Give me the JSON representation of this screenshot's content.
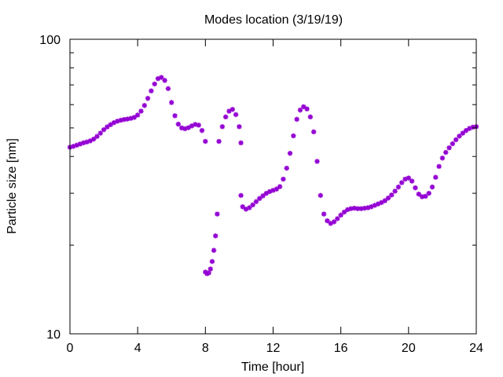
{
  "chart_data": {
    "type": "scatter",
    "title": "Modes location (3/19/19)",
    "xlabel": "Time [hour]",
    "ylabel": "Particle size [nm]",
    "xlim": [
      0,
      24
    ],
    "ylim": [
      10,
      100
    ],
    "yscale": "log",
    "grid": false,
    "legend": "none",
    "xticks": [
      "0",
      "4",
      "8",
      "12",
      "16",
      "20",
      "24"
    ],
    "yticks": [
      "10",
      "100"
    ],
    "marker": "asterisk",
    "color": "#9400d3",
    "series": [
      {
        "points": [
          [
            0.0,
            43.0
          ],
          [
            0.2,
            43.3
          ],
          [
            0.4,
            43.7
          ],
          [
            0.6,
            44.1
          ],
          [
            0.8,
            44.5
          ],
          [
            1.0,
            44.8
          ],
          [
            1.2,
            45.2
          ],
          [
            1.4,
            45.8
          ],
          [
            1.6,
            46.8
          ],
          [
            1.8,
            48.0
          ],
          [
            2.0,
            49.3
          ],
          [
            2.2,
            50.4
          ],
          [
            2.4,
            51.3
          ],
          [
            2.6,
            52.1
          ],
          [
            2.8,
            52.7
          ],
          [
            3.0,
            53.1
          ],
          [
            3.2,
            53.4
          ],
          [
            3.4,
            53.6
          ],
          [
            3.6,
            53.9
          ],
          [
            3.8,
            54.3
          ],
          [
            4.0,
            55.3
          ],
          [
            4.2,
            57.0
          ],
          [
            4.4,
            59.6
          ],
          [
            4.6,
            63.0
          ],
          [
            4.8,
            66.8
          ],
          [
            5.0,
            70.5
          ],
          [
            5.2,
            73.5
          ],
          [
            5.4,
            74.2
          ],
          [
            5.6,
            72.5
          ],
          [
            5.8,
            68.0
          ],
          [
            6.0,
            61.0
          ],
          [
            6.2,
            55.0
          ],
          [
            6.4,
            51.5
          ],
          [
            6.6,
            50.0
          ],
          [
            6.8,
            49.7
          ],
          [
            7.0,
            50.1
          ],
          [
            7.2,
            50.8
          ],
          [
            7.4,
            51.4
          ],
          [
            7.6,
            51.1
          ],
          [
            7.8,
            49.0
          ],
          [
            8.0,
            45.0
          ],
          [
            8.0,
            16.2
          ],
          [
            8.1,
            16.0
          ],
          [
            8.2,
            16.1
          ],
          [
            8.3,
            16.6
          ],
          [
            8.4,
            17.6
          ],
          [
            8.5,
            19.2
          ],
          [
            8.6,
            21.5
          ],
          [
            8.7,
            25.5
          ],
          [
            8.8,
            45.0
          ],
          [
            9.0,
            50.5
          ],
          [
            9.2,
            54.5
          ],
          [
            9.4,
            57.0
          ],
          [
            9.6,
            57.8
          ],
          [
            9.8,
            55.5
          ],
          [
            10.0,
            50.5
          ],
          [
            10.1,
            44.5
          ],
          [
            10.1,
            29.5
          ],
          [
            10.2,
            27.0
          ],
          [
            10.4,
            26.5
          ],
          [
            10.6,
            26.8
          ],
          [
            10.8,
            27.4
          ],
          [
            11.0,
            28.1
          ],
          [
            11.2,
            28.8
          ],
          [
            11.4,
            29.4
          ],
          [
            11.6,
            30.0
          ],
          [
            11.8,
            30.4
          ],
          [
            12.0,
            30.7
          ],
          [
            12.2,
            31.0
          ],
          [
            12.4,
            31.6
          ],
          [
            12.6,
            33.5
          ],
          [
            12.8,
            36.5
          ],
          [
            13.0,
            41.0
          ],
          [
            13.2,
            47.0
          ],
          [
            13.4,
            53.5
          ],
          [
            13.6,
            57.5
          ],
          [
            13.8,
            59.0
          ],
          [
            14.0,
            58.0
          ],
          [
            14.2,
            54.5
          ],
          [
            14.4,
            48.5
          ],
          [
            14.6,
            38.5
          ],
          [
            14.8,
            29.5
          ],
          [
            15.0,
            25.5
          ],
          [
            15.2,
            24.2
          ],
          [
            15.4,
            23.7
          ],
          [
            15.6,
            24.0
          ],
          [
            15.8,
            24.6
          ],
          [
            16.0,
            25.3
          ],
          [
            16.2,
            25.9
          ],
          [
            16.4,
            26.4
          ],
          [
            16.6,
            26.6
          ],
          [
            16.8,
            26.7
          ],
          [
            17.0,
            26.6
          ],
          [
            17.2,
            26.6
          ],
          [
            17.4,
            26.7
          ],
          [
            17.6,
            26.8
          ],
          [
            17.8,
            27.0
          ],
          [
            18.0,
            27.3
          ],
          [
            18.2,
            27.6
          ],
          [
            18.4,
            27.9
          ],
          [
            18.6,
            28.3
          ],
          [
            18.8,
            28.9
          ],
          [
            19.0,
            29.6
          ],
          [
            19.2,
            30.5
          ],
          [
            19.4,
            31.5
          ],
          [
            19.6,
            32.6
          ],
          [
            19.8,
            33.5
          ],
          [
            20.0,
            33.8
          ],
          [
            20.2,
            33.0
          ],
          [
            20.4,
            31.3
          ],
          [
            20.6,
            29.8
          ],
          [
            20.8,
            29.2
          ],
          [
            21.0,
            29.3
          ],
          [
            21.2,
            30.0
          ],
          [
            21.4,
            31.5
          ],
          [
            21.6,
            34.0
          ],
          [
            21.8,
            37.0
          ],
          [
            22.0,
            39.5
          ],
          [
            22.2,
            41.3
          ],
          [
            22.4,
            42.8
          ],
          [
            22.6,
            44.2
          ],
          [
            22.8,
            45.6
          ],
          [
            23.0,
            46.9
          ],
          [
            23.2,
            48.0
          ],
          [
            23.4,
            49.0
          ],
          [
            23.6,
            49.8
          ],
          [
            23.8,
            50.3
          ],
          [
            24.0,
            50.5
          ]
        ]
      }
    ]
  }
}
